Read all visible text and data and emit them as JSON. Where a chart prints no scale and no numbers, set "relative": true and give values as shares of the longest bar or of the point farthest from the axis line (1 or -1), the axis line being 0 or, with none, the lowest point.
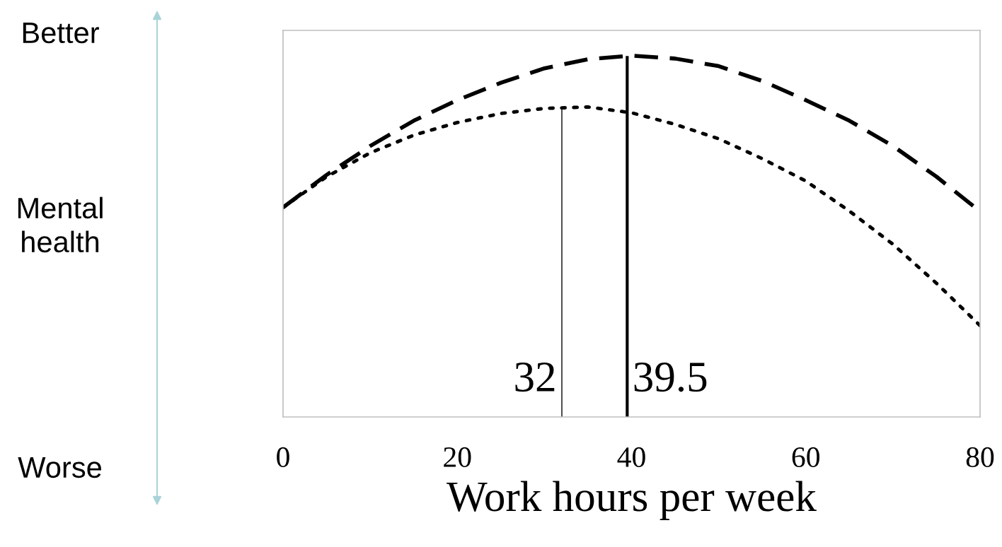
{
  "chart_data": {
    "type": "line",
    "xlabel": "Work hours per week",
    "annotations": [
      "Better",
      "Mental health",
      "Worse"
    ],
    "relative": true,
    "tick_labels": "x",
    "marker": "none",
    "xlim": [
      0,
      80
    ],
    "xticks": [
      0,
      20,
      40,
      60,
      80
    ],
    "series": [
      {
        "color": "#000000",
        "line_style": "dashed",
        "x": [
          0,
          5,
          10,
          15,
          20,
          25,
          30,
          35,
          40,
          45,
          50,
          55,
          60,
          65,
          70,
          75,
          80
        ],
        "values": [
          0.58,
          0.67,
          0.75,
          0.82,
          0.877,
          0.925,
          0.965,
          0.99,
          1.0,
          0.992,
          0.971,
          0.93,
          0.877,
          0.82,
          0.75,
          0.665,
          0.569
        ]
      },
      {
        "color": "#000000",
        "line_style": "dotted",
        "x": [
          0,
          5,
          10,
          15,
          20,
          25,
          30,
          35,
          40,
          45,
          50,
          55,
          60,
          65,
          70,
          75,
          80
        ],
        "values": [
          0.58,
          0.665,
          0.731,
          0.78,
          0.815,
          0.84,
          0.854,
          0.858,
          0.842,
          0.81,
          0.77,
          0.715,
          0.653,
          0.57,
          0.478,
          0.37,
          0.253
        ]
      }
    ],
    "ref_lines": [
      {
        "axis": "x",
        "value": 32,
        "label": "32",
        "color": "#000000",
        "line_style": "solid"
      },
      {
        "axis": "x",
        "value": 39.5,
        "label": "39.5",
        "color": "#000000",
        "line_style": "solid"
      }
    ]
  }
}
